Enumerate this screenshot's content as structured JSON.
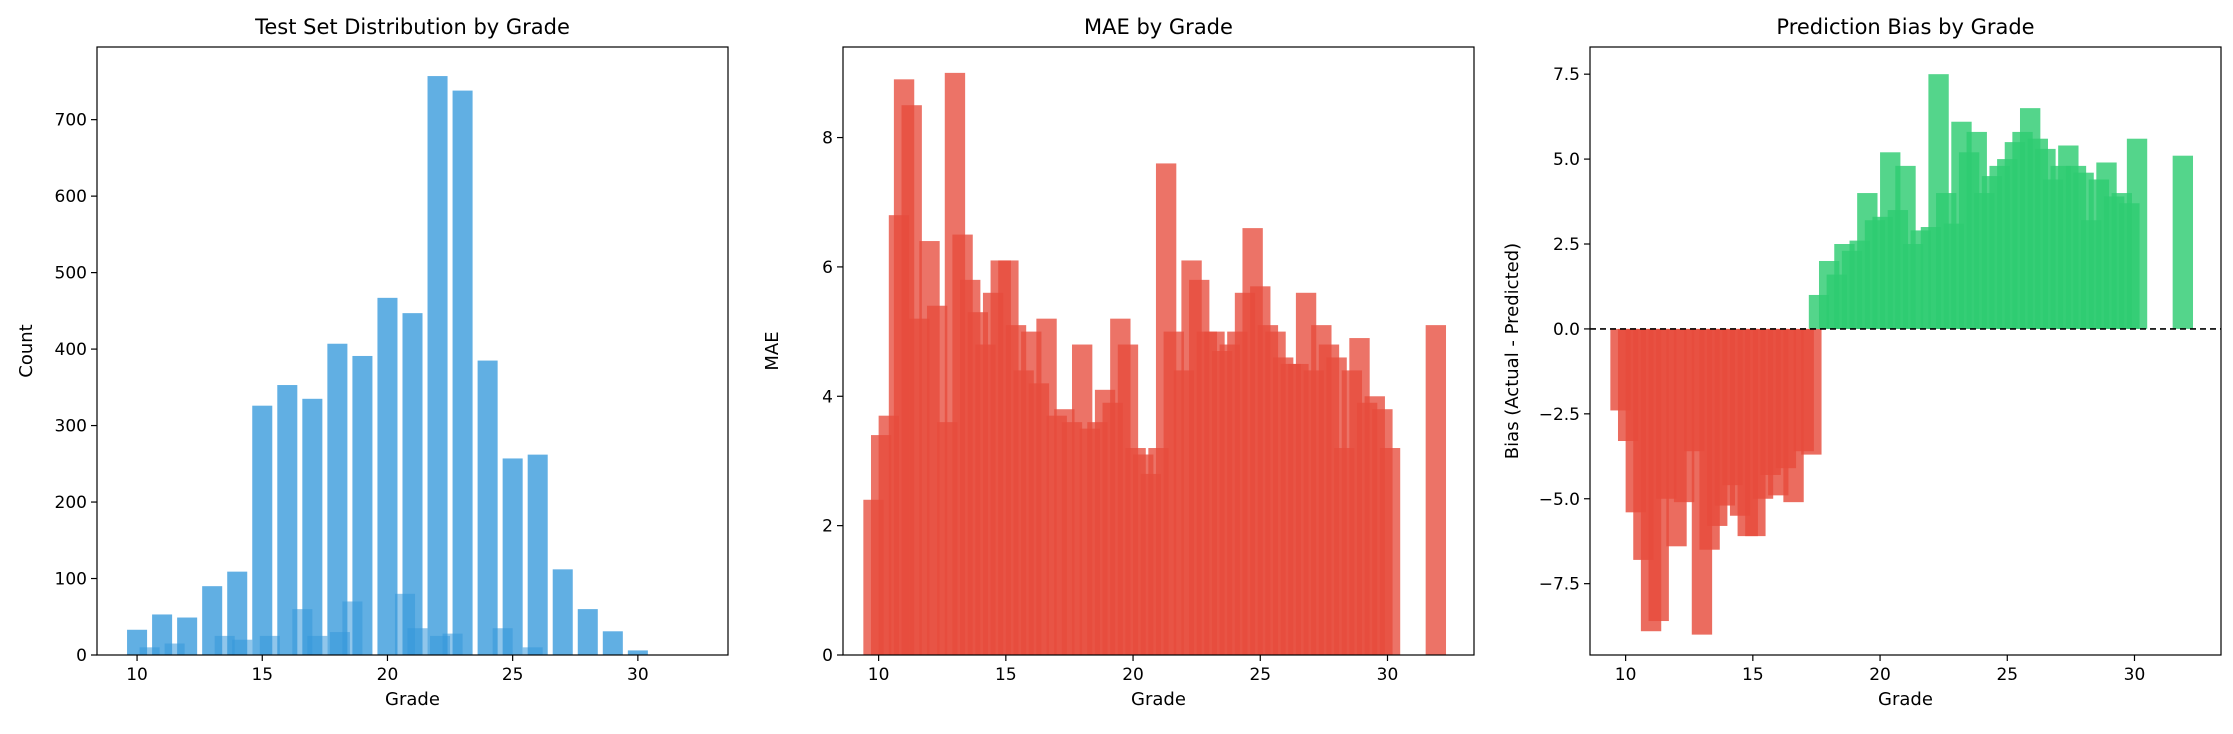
{
  "colors": {
    "count_bar": "#3498db",
    "mae_bar": "#e74c3c",
    "bias_pos": "#2ecc71",
    "bias_neg": "#e74c3c",
    "zero_line": "#000000"
  },
  "chart_data": [
    {
      "type": "bar",
      "title": "Test Set Distribution by Grade",
      "xlabel": "Grade",
      "ylabel": "Count",
      "xlim": [
        8.4,
        33.6
      ],
      "ylim": [
        0,
        795
      ],
      "xticks": [
        10,
        15,
        20,
        25,
        30
      ],
      "yticks": [
        0,
        100,
        200,
        300,
        400,
        500,
        600,
        700
      ],
      "bar_width": 0.8,
      "series": [
        {
          "x": [
            10,
            11,
            12,
            13,
            14,
            15,
            16,
            17,
            18,
            19,
            20,
            21,
            22,
            23,
            24,
            25,
            26,
            27,
            28,
            29,
            30
          ],
          "values": [
            33,
            53,
            49,
            90,
            109,
            326,
            353,
            335,
            407,
            391,
            467,
            447,
            757,
            738,
            385,
            257,
            262,
            112,
            60,
            31,
            6
          ]
        },
        {
          "x": [
            10.5,
            11.5,
            13.5,
            14.2,
            15.3,
            16.6,
            17.2,
            18.1,
            18.6,
            20.7,
            21.2,
            22.1,
            22.6,
            24.6,
            25.8
          ],
          "values": [
            10,
            15,
            25,
            20,
            25,
            60,
            25,
            30,
            70,
            80,
            35,
            25,
            28,
            35,
            10
          ]
        }
      ]
    },
    {
      "type": "bar",
      "title": "MAE by Grade",
      "xlabel": "Grade",
      "ylabel": "MAE",
      "xlim": [
        8.6,
        33.4
      ],
      "ylim": [
        0,
        9.4
      ],
      "xticks": [
        10,
        15,
        20,
        25,
        30
      ],
      "yticks": [
        0,
        2,
        4,
        6,
        8
      ],
      "bar_width": 0.8,
      "x": [
        9.8,
        10.1,
        10.4,
        10.8,
        11.0,
        11.3,
        11.6,
        12.0,
        12.3,
        12.7,
        13.0,
        13.3,
        13.6,
        13.9,
        14.2,
        14.5,
        14.8,
        15.1,
        15.4,
        15.7,
        16.0,
        16.3,
        16.6,
        17.0,
        17.3,
        17.6,
        18.0,
        18.3,
        18.6,
        18.9,
        19.2,
        19.5,
        19.8,
        20.1,
        20.4,
        20.7,
        21.0,
        21.3,
        21.6,
        22.0,
        22.3,
        22.6,
        22.9,
        23.2,
        23.5,
        23.8,
        24.1,
        24.4,
        24.7,
        25.0,
        25.3,
        25.6,
        25.9,
        26.2,
        26.5,
        26.8,
        27.1,
        27.4,
        27.7,
        28.0,
        28.3,
        28.6,
        28.9,
        29.2,
        29.5,
        29.8,
        30.1,
        31.9
      ],
      "values": [
        2.4,
        3.4,
        3.7,
        6.8,
        8.9,
        8.5,
        5.2,
        6.4,
        5.4,
        3.6,
        9.0,
        6.5,
        5.8,
        5.3,
        4.8,
        5.6,
        6.1,
        6.1,
        5.1,
        4.4,
        5.0,
        4.2,
        5.2,
        3.7,
        3.8,
        3.6,
        4.8,
        3.5,
        3.6,
        4.1,
        3.9,
        5.2,
        4.8,
        3.2,
        3.1,
        2.8,
        3.2,
        7.6,
        5.0,
        4.4,
        6.1,
        5.8,
        5.0,
        5.0,
        4.7,
        4.8,
        5.0,
        5.6,
        6.6,
        5.7,
        5.1,
        5.0,
        4.6,
        4.5,
        4.5,
        5.6,
        4.4,
        5.1,
        4.8,
        4.6,
        3.2,
        4.4,
        4.9,
        3.9,
        4.0,
        3.8,
        3.2,
        5.1
      ]
    },
    {
      "type": "bar",
      "title": "Prediction Bias by Grade",
      "xlabel": "Grade",
      "ylabel": "Bias (Actual - Predicted)",
      "xlim": [
        8.6,
        33.4
      ],
      "ylim": [
        -9.6,
        8.3
      ],
      "xticks": [
        10,
        15,
        20,
        25,
        30
      ],
      "yticks": [
        -7.5,
        -5.0,
        -2.5,
        0.0,
        2.5,
        5.0,
        7.5
      ],
      "zero_line": true,
      "bar_width": 0.8,
      "x": [
        9.8,
        10.1,
        10.4,
        10.7,
        11.0,
        11.3,
        11.6,
        12.0,
        12.3,
        12.7,
        13.0,
        13.3,
        13.6,
        13.9,
        14.2,
        14.5,
        14.8,
        15.1,
        15.4,
        15.7,
        16.0,
        16.3,
        16.6,
        17.0,
        17.3,
        17.6,
        18.0,
        18.3,
        18.6,
        18.9,
        19.2,
        19.5,
        19.8,
        20.1,
        20.4,
        20.7,
        21.0,
        21.3,
        21.6,
        22.0,
        22.3,
        22.6,
        22.9,
        23.2,
        23.5,
        23.8,
        24.1,
        24.4,
        24.7,
        25.0,
        25.3,
        25.6,
        25.9,
        26.2,
        26.5,
        26.8,
        27.1,
        27.4,
        27.7,
        28.0,
        28.3,
        28.6,
        28.9,
        29.2,
        29.5,
        29.8,
        30.1,
        31.9
      ],
      "values": [
        -2.4,
        -3.3,
        -5.4,
        -6.8,
        -8.9,
        -8.6,
        -5.0,
        -6.4,
        -5.1,
        -3.6,
        -9.0,
        -6.5,
        -5.8,
        -5.2,
        -4.6,
        -5.5,
        -6.1,
        -6.1,
        -5.0,
        -4.3,
        -4.9,
        -4.1,
        -5.1,
        -3.6,
        -3.7,
        1.0,
        2.0,
        1.6,
        2.5,
        2.3,
        2.6,
        4.0,
        3.2,
        3.3,
        5.2,
        3.5,
        4.8,
        2.5,
        2.9,
        3.0,
        7.5,
        4.0,
        3.1,
        6.1,
        5.2,
        5.8,
        4.0,
        4.5,
        4.8,
        5.0,
        5.5,
        5.8,
        6.5,
        5.6,
        5.3,
        4.4,
        4.8,
        5.4,
        4.8,
        4.6,
        3.2,
        4.4,
        4.9,
        3.9,
        4.0,
        3.7,
        5.6,
        5.1
      ]
    }
  ]
}
